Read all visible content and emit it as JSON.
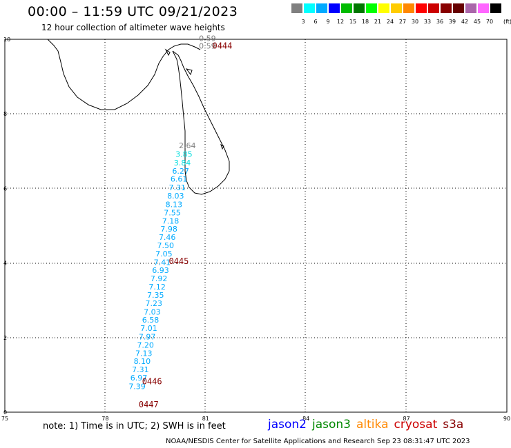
{
  "title": "00:00 – 11:59 UTC 09/21/2023",
  "subtitle": "12 hour collection of altimeter wave heights",
  "legend": {
    "unit": "(ft)",
    "colors": [
      "#808080",
      "#00ffff",
      "#00aaff",
      "#0000ff",
      "#00bb00",
      "#007700",
      "#00ff00",
      "#ffff00",
      "#ffcc00",
      "#ff8800",
      "#ff0000",
      "#cc0000",
      "#880000",
      "#660000",
      "#aa66aa",
      "#ff66ff",
      "#000000"
    ],
    "labels": [
      "3",
      "6",
      "9",
      "12",
      "15",
      "18",
      "21",
      "24",
      "27",
      "30",
      "33",
      "36",
      "39",
      "42",
      "45",
      "70"
    ]
  },
  "axes": {
    "x_ticks": [
      "75",
      "78",
      "81",
      "84",
      "87",
      "90"
    ],
    "y_ticks": [
      "0",
      "2",
      "4",
      "6",
      "8",
      "10"
    ],
    "xlim": [
      75,
      90
    ],
    "ylim": [
      0,
      10
    ]
  },
  "note": "note:  1) Time is in UTC;  2) SWH is in feet",
  "satellites": [
    {
      "name": "jason2",
      "color": "#0000ff"
    },
    {
      "name": "jason3",
      "color": "#008800"
    },
    {
      "name": "altika",
      "color": "#ff8800"
    },
    {
      "name": "cryosat",
      "color": "#cc0000"
    },
    {
      "name": "s3a",
      "color": "#880000"
    }
  ],
  "credit": "NOAA/NESDIS Center for Satellite Applications and Research     Sep 23 08:31:47 UTC 2023",
  "chart_data": {
    "type": "scatter",
    "tracks": [
      {
        "satellite": "s3a",
        "times": [
          {
            "label": "0444",
            "lon": 81.2,
            "lat": 9.75,
            "color": "#880000"
          },
          {
            "label": "0445",
            "lon": 79.9,
            "lat": 3.97,
            "color": "#880000"
          },
          {
            "label": "0446",
            "lon": 79.1,
            "lat": 0.75,
            "color": "#880000"
          },
          {
            "label": "0447",
            "lon": 79.0,
            "lat": 0.13,
            "color": "#880000"
          }
        ],
        "points": [
          {
            "lon": 80.8,
            "lat": 9.95,
            "v": "0.59",
            "c": "#808080"
          },
          {
            "lon": 80.8,
            "lat": 9.75,
            "v": "0.59",
            "c": "#808080"
          },
          {
            "lon": 80.2,
            "lat": 7.08,
            "v": "2.64",
            "c": "#808080"
          },
          {
            "lon": 80.1,
            "lat": 6.85,
            "v": "3.85",
            "c": "#00dddd"
          },
          {
            "lon": 80.05,
            "lat": 6.62,
            "v": "3.84",
            "c": "#00dddd"
          },
          {
            "lon": 80.0,
            "lat": 6.4,
            "v": "6.27",
            "c": "#00aaff"
          },
          {
            "lon": 79.95,
            "lat": 6.18,
            "v": "6.61",
            "c": "#00aaff"
          },
          {
            "lon": 79.9,
            "lat": 5.95,
            "v": "7.31",
            "c": "#00aaff"
          },
          {
            "lon": 79.85,
            "lat": 5.73,
            "v": "8.03",
            "c": "#00aaff"
          },
          {
            "lon": 79.8,
            "lat": 5.5,
            "v": "8.13",
            "c": "#00aaff"
          },
          {
            "lon": 79.75,
            "lat": 5.28,
            "v": "7.55",
            "c": "#00aaff"
          },
          {
            "lon": 79.7,
            "lat": 5.06,
            "v": "7.18",
            "c": "#00aaff"
          },
          {
            "lon": 79.65,
            "lat": 4.84,
            "v": "7.98",
            "c": "#00aaff"
          },
          {
            "lon": 79.6,
            "lat": 4.62,
            "v": "7.46",
            "c": "#00aaff"
          },
          {
            "lon": 79.55,
            "lat": 4.4,
            "v": "7.50",
            "c": "#00aaff"
          },
          {
            "lon": 79.5,
            "lat": 4.18,
            "v": "7.05",
            "c": "#00aaff"
          },
          {
            "lon": 79.45,
            "lat": 3.95,
            "v": "7.41",
            "c": "#00aaff"
          },
          {
            "lon": 79.4,
            "lat": 3.73,
            "v": "6.93",
            "c": "#00aaff"
          },
          {
            "lon": 79.35,
            "lat": 3.51,
            "v": "7.92",
            "c": "#00aaff"
          },
          {
            "lon": 79.3,
            "lat": 3.29,
            "v": "7.12",
            "c": "#00aaff"
          },
          {
            "lon": 79.25,
            "lat": 3.07,
            "v": "7.35",
            "c": "#00aaff"
          },
          {
            "lon": 79.2,
            "lat": 2.85,
            "v": "7.23",
            "c": "#00aaff"
          },
          {
            "lon": 79.15,
            "lat": 2.62,
            "v": "7.03",
            "c": "#00aaff"
          },
          {
            "lon": 79.1,
            "lat": 2.4,
            "v": "6.58",
            "c": "#00aaff"
          },
          {
            "lon": 79.05,
            "lat": 2.18,
            "v": "7.01",
            "c": "#00aaff"
          },
          {
            "lon": 79.0,
            "lat": 1.95,
            "v": "7.97",
            "c": "#00aaff"
          },
          {
            "lon": 78.95,
            "lat": 1.73,
            "v": "7.20",
            "c": "#00aaff"
          },
          {
            "lon": 78.9,
            "lat": 1.51,
            "v": "7.13",
            "c": "#00aaff"
          },
          {
            "lon": 78.85,
            "lat": 1.29,
            "v": "8.10",
            "c": "#00aaff"
          },
          {
            "lon": 78.8,
            "lat": 1.07,
            "v": "7.31",
            "c": "#00aaff"
          },
          {
            "lon": 78.75,
            "lat": 0.85,
            "v": "6.97",
            "c": "#00aaff"
          },
          {
            "lon": 78.7,
            "lat": 0.62,
            "v": "7.39",
            "c": "#00aaff"
          }
        ]
      }
    ]
  }
}
